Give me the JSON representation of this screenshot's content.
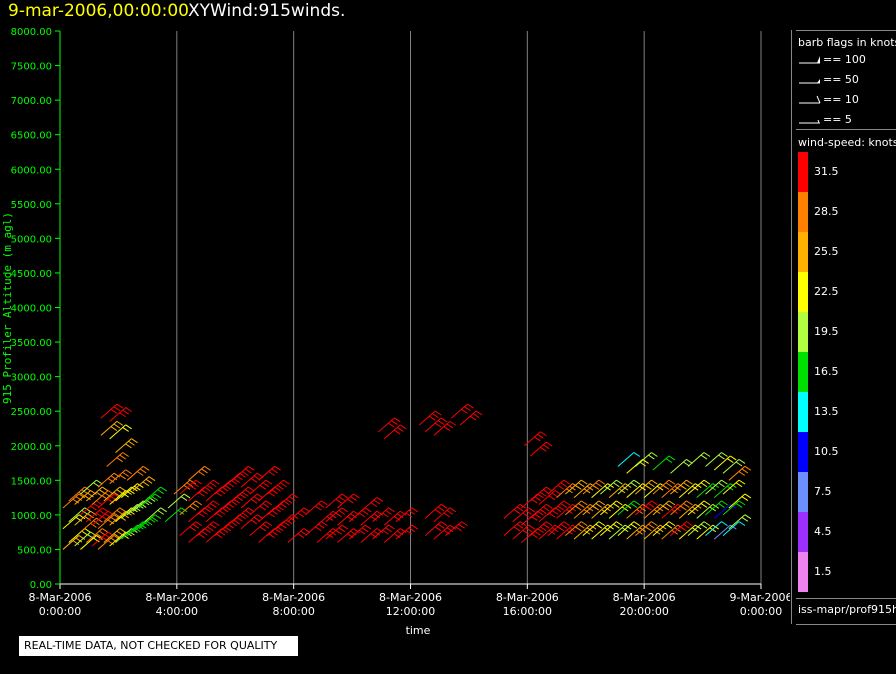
{
  "header": {
    "date_label": "9-mar-2006,00:00:00",
    "product_label": "XYWind:915winds."
  },
  "chart_data": {
    "type": "scatter",
    "title": "9-mar-2006,00:00:00  XYWind:915winds.",
    "xlabel": "time",
    "ylabel": "915 Profiler Altitude (m agl)",
    "x_unit": "hours since 8-Mar-2006 0:00:00",
    "xlim": [
      0,
      24
    ],
    "ylim": [
      0,
      8000
    ],
    "grid": "vertical lines at x ticks",
    "x_ticks": [
      {
        "value": 0,
        "line1": "8-Mar-2006",
        "line2": "0:00:00"
      },
      {
        "value": 4,
        "line1": "8-Mar-2006",
        "line2": "4:00:00"
      },
      {
        "value": 8,
        "line1": "8-Mar-2006",
        "line2": "8:00:00"
      },
      {
        "value": 12,
        "line1": "8-Mar-2006",
        "line2": "12:00:00"
      },
      {
        "value": 16,
        "line1": "8-Mar-2006",
        "line2": "16:00:00"
      },
      {
        "value": 20,
        "line1": "8-Mar-2006",
        "line2": "20:00:00"
      },
      {
        "value": 24,
        "line1": "9-Mar-2006",
        "line2": "0:00:00"
      }
    ],
    "y_ticks": [
      "0.00",
      "500.00",
      "1000.00",
      "1500.00",
      "2000.00",
      "2500.00",
      "3000.00",
      "3500.00",
      "4000.00",
      "4500.00",
      "5000.00",
      "5500.00",
      "6000.00",
      "6500.00",
      "7000.00",
      "7500.00",
      "8000.00"
    ],
    "series": [
      {
        "name": "wind barbs",
        "points": [
          [
            0.1,
            500,
            25.5
          ],
          [
            0.1,
            800,
            22.5
          ],
          [
            0.1,
            1100,
            28.5
          ],
          [
            0.3,
            600,
            22.5
          ],
          [
            0.3,
            900,
            19.5
          ],
          [
            0.3,
            1200,
            28.5
          ],
          [
            0.5,
            550,
            19.5
          ],
          [
            0.5,
            850,
            25.5
          ],
          [
            0.5,
            1150,
            25.5
          ],
          [
            0.7,
            500,
            22.5
          ],
          [
            0.7,
            750,
            28.5
          ],
          [
            0.7,
            1000,
            31.5
          ],
          [
            0.7,
            1300,
            19.5
          ],
          [
            0.9,
            600,
            28.5
          ],
          [
            0.9,
            900,
            31.5
          ],
          [
            0.9,
            1200,
            25.5
          ],
          [
            1.1,
            550,
            31.5
          ],
          [
            1.1,
            850,
            31.5
          ],
          [
            1.1,
            1150,
            28.5
          ],
          [
            1.3,
            500,
            28.5
          ],
          [
            1.3,
            800,
            28.5
          ],
          [
            1.3,
            1100,
            31.5
          ],
          [
            1.3,
            1400,
            28.5
          ],
          [
            1.5,
            600,
            25.5
          ],
          [
            1.5,
            900,
            28.5
          ],
          [
            1.5,
            1200,
            25.5
          ],
          [
            1.7,
            550,
            22.5
          ],
          [
            1.7,
            850,
            25.5
          ],
          [
            1.7,
            1150,
            22.5
          ],
          [
            1.7,
            1450,
            28.5
          ],
          [
            1.9,
            600,
            19.5
          ],
          [
            1.9,
            900,
            22.5
          ],
          [
            1.9,
            1200,
            22.5
          ],
          [
            2.1,
            650,
            16.5
          ],
          [
            2.1,
            950,
            19.5
          ],
          [
            2.1,
            1250,
            22.5
          ],
          [
            2.3,
            700,
            16.5
          ],
          [
            2.3,
            1000,
            19.5
          ],
          [
            2.3,
            1500,
            28.5
          ],
          [
            2.5,
            750,
            16.5
          ],
          [
            2.5,
            1050,
            19.5
          ],
          [
            2.5,
            1350,
            25.5
          ],
          [
            2.7,
            800,
            16.5
          ],
          [
            2.7,
            1100,
            16.5
          ],
          [
            2.9,
            900,
            19.5
          ],
          [
            2.9,
            1200,
            16.5
          ],
          [
            1.4,
            2400,
            31.5
          ],
          [
            1.7,
            2350,
            31.5
          ],
          [
            1.4,
            2150,
            25.5
          ],
          [
            1.7,
            2100,
            22.5
          ],
          [
            1.9,
            1900,
            25.5
          ],
          [
            1.6,
            1700,
            28.5
          ],
          [
            3.6,
            900,
            16.5
          ],
          [
            3.7,
            1100,
            19.5
          ],
          [
            3.9,
            1300,
            28.5
          ],
          [
            4.1,
            700,
            31.5
          ],
          [
            4.1,
            1000,
            28.5
          ],
          [
            4.1,
            1300,
            31.5
          ],
          [
            4.4,
            600,
            31.5
          ],
          [
            4.4,
            900,
            31.5
          ],
          [
            4.4,
            1200,
            31.5
          ],
          [
            4.4,
            1500,
            28.5
          ],
          [
            4.7,
            700,
            31.5
          ],
          [
            4.7,
            1000,
            31.5
          ],
          [
            4.7,
            1300,
            31.5
          ],
          [
            5.0,
            600,
            31.5
          ],
          [
            5.0,
            900,
            31.5
          ],
          [
            5.0,
            1200,
            31.5
          ],
          [
            5.3,
            700,
            31.5
          ],
          [
            5.3,
            1000,
            31.5
          ],
          [
            5.3,
            1300,
            31.5
          ],
          [
            5.6,
            800,
            31.5
          ],
          [
            5.6,
            1100,
            31.5
          ],
          [
            5.6,
            1400,
            31.5
          ],
          [
            5.9,
            900,
            31.5
          ],
          [
            5.9,
            1200,
            31.5
          ],
          [
            5.9,
            1500,
            31.5
          ],
          [
            6.2,
            800,
            31.5
          ],
          [
            6.2,
            1100,
            31.5
          ],
          [
            6.2,
            1400,
            31.5
          ],
          [
            6.5,
            700,
            31.5
          ],
          [
            6.5,
            1000,
            31.5
          ],
          [
            6.5,
            1300,
            31.5
          ],
          [
            6.8,
            600,
            31.5
          ],
          [
            6.8,
            900,
            31.5
          ],
          [
            6.8,
            1200,
            31.5
          ],
          [
            6.8,
            1500,
            31.5
          ],
          [
            7.1,
            700,
            31.5
          ],
          [
            7.1,
            1000,
            31.5
          ],
          [
            7.1,
            1300,
            31.5
          ],
          [
            7.4,
            800,
            31.5
          ],
          [
            7.4,
            1100,
            31.5
          ],
          [
            7.8,
            600,
            31.5
          ],
          [
            7.8,
            900,
            31.5
          ],
          [
            8.4,
            700,
            31.5
          ],
          [
            8.4,
            1000,
            31.5
          ],
          [
            8.8,
            600,
            31.5
          ],
          [
            8.8,
            850,
            31.5
          ],
          [
            9.1,
            650,
            31.5
          ],
          [
            9.1,
            900,
            31.5
          ],
          [
            9.1,
            1100,
            31.5
          ],
          [
            9.5,
            600,
            31.5
          ],
          [
            9.5,
            850,
            31.5
          ],
          [
            9.5,
            1100,
            31.5
          ],
          [
            9.9,
            650,
            31.5
          ],
          [
            9.9,
            900,
            31.5
          ],
          [
            10.3,
            600,
            31.5
          ],
          [
            10.3,
            850,
            31.5
          ],
          [
            10.3,
            1050,
            31.5
          ],
          [
            10.7,
            650,
            31.5
          ],
          [
            10.7,
            900,
            31.5
          ],
          [
            11.1,
            600,
            31.5
          ],
          [
            11.1,
            850,
            31.5
          ],
          [
            11.5,
            650,
            31.5
          ],
          [
            11.5,
            900,
            31.5
          ],
          [
            10.9,
            2200,
            31.5
          ],
          [
            11.1,
            2100,
            31.5
          ],
          [
            12.3,
            2300,
            31.5
          ],
          [
            12.5,
            2200,
            31.5
          ],
          [
            12.8,
            2150,
            31.5
          ],
          [
            13.4,
            2400,
            31.5
          ],
          [
            13.7,
            2300,
            31.5
          ],
          [
            12.5,
            700,
            31.5
          ],
          [
            12.5,
            950,
            31.5
          ],
          [
            12.8,
            650,
            31.5
          ],
          [
            12.8,
            900,
            31.5
          ],
          [
            13.2,
            700,
            31.5
          ],
          [
            15.9,
            2000,
            31.5
          ],
          [
            16.1,
            1850,
            31.5
          ],
          [
            15.2,
            700,
            31.5
          ],
          [
            15.2,
            950,
            31.5
          ],
          [
            15.5,
            650,
            31.5
          ],
          [
            15.5,
            900,
            31.5
          ],
          [
            15.8,
            600,
            31.5
          ],
          [
            15.8,
            850,
            31.5
          ],
          [
            15.8,
            1100,
            31.5
          ],
          [
            16.1,
            700,
            31.5
          ],
          [
            16.1,
            950,
            31.5
          ],
          [
            16.1,
            1200,
            31.5
          ],
          [
            16.4,
            650,
            31.5
          ],
          [
            16.4,
            900,
            31.5
          ],
          [
            16.4,
            1150,
            31.5
          ],
          [
            16.7,
            700,
            31.5
          ],
          [
            16.7,
            1000,
            31.5
          ],
          [
            16.7,
            1300,
            31.5
          ],
          [
            17.0,
            650,
            31.5
          ],
          [
            17.0,
            950,
            31.5
          ],
          [
            17.0,
            1250,
            28.5
          ],
          [
            17.3,
            700,
            28.5
          ],
          [
            17.3,
            1000,
            28.5
          ],
          [
            17.3,
            1300,
            25.5
          ],
          [
            17.6,
            650,
            25.5
          ],
          [
            17.6,
            950,
            28.5
          ],
          [
            17.6,
            1250,
            25.5
          ],
          [
            17.9,
            700,
            22.5
          ],
          [
            17.9,
            1000,
            25.5
          ],
          [
            17.9,
            1300,
            28.5
          ],
          [
            18.2,
            650,
            22.5
          ],
          [
            18.2,
            950,
            25.5
          ],
          [
            18.2,
            1250,
            22.5
          ],
          [
            18.5,
            700,
            22.5
          ],
          [
            18.5,
            1000,
            22.5
          ],
          [
            18.5,
            1300,
            19.5
          ],
          [
            18.8,
            650,
            19.5
          ],
          [
            18.8,
            950,
            22.5
          ],
          [
            18.8,
            1250,
            25.5
          ],
          [
            19.1,
            700,
            22.5
          ],
          [
            19.1,
            1000,
            16.5
          ],
          [
            19.1,
            1300,
            19.5
          ],
          [
            19.1,
            1700,
            13.5
          ],
          [
            19.4,
            650,
            25.5
          ],
          [
            19.4,
            950,
            28.5
          ],
          [
            19.4,
            1250,
            22.5
          ],
          [
            19.4,
            1600,
            22.5
          ],
          [
            19.7,
            700,
            28.5
          ],
          [
            19.7,
            1000,
            31.5
          ],
          [
            19.7,
            1300,
            25.5
          ],
          [
            19.7,
            1700,
            19.5
          ],
          [
            20.0,
            650,
            25.5
          ],
          [
            20.0,
            950,
            28.5
          ],
          [
            20.0,
            1250,
            22.5
          ],
          [
            20.3,
            700,
            22.5
          ],
          [
            20.3,
            1000,
            25.5
          ],
          [
            20.3,
            1300,
            28.5
          ],
          [
            20.3,
            1650,
            16.5
          ],
          [
            20.6,
            650,
            28.5
          ],
          [
            20.6,
            950,
            31.5
          ],
          [
            20.6,
            1250,
            28.5
          ],
          [
            20.9,
            700,
            31.5
          ],
          [
            20.9,
            1000,
            28.5
          ],
          [
            20.9,
            1300,
            25.5
          ],
          [
            20.9,
            1600,
            19.5
          ],
          [
            21.2,
            650,
            22.5
          ],
          [
            21.2,
            950,
            25.5
          ],
          [
            21.2,
            1250,
            22.5
          ],
          [
            21.5,
            700,
            19.5
          ],
          [
            21.5,
            1000,
            22.5
          ],
          [
            21.5,
            1300,
            22.5
          ],
          [
            21.5,
            1700,
            19.5
          ],
          [
            21.8,
            650,
            22.5
          ],
          [
            21.8,
            950,
            19.5
          ],
          [
            21.8,
            1250,
            16.5
          ],
          [
            22.1,
            700,
            13.5
          ],
          [
            22.1,
            1000,
            16.5
          ],
          [
            22.1,
            1300,
            19.5
          ],
          [
            22.1,
            1700,
            19.5
          ],
          [
            22.4,
            650,
            7.5
          ],
          [
            22.4,
            950,
            10.5
          ],
          [
            22.4,
            1250,
            16.5
          ],
          [
            22.4,
            1650,
            22.5
          ],
          [
            22.7,
            700,
            13.5
          ],
          [
            22.7,
            1000,
            16.5
          ],
          [
            22.7,
            1300,
            22.5
          ],
          [
            22.7,
            1600,
            19.5
          ],
          [
            22.9,
            800,
            19.5
          ],
          [
            22.9,
            1100,
            22.5
          ],
          [
            22.9,
            1500,
            28.5
          ]
        ]
      }
    ]
  },
  "legend": {
    "barb_title": "barb flags in knots",
    "barb_entries": [
      {
        "label": "== 100",
        "icon": "pennant-barb"
      },
      {
        "label": "== 50",
        "icon": "half-pennant-barb"
      },
      {
        "label": "== 10",
        "icon": "full-barb"
      },
      {
        "label": "== 5",
        "icon": "half-barb"
      }
    ],
    "speed_title": "wind-speed: knots",
    "speed_entries": [
      {
        "label": "31.5",
        "color": "#ff0000"
      },
      {
        "label": "28.5",
        "color": "#ff8000"
      },
      {
        "label": "25.5",
        "color": "#ffb000"
      },
      {
        "label": "22.5",
        "color": "#ffff00"
      },
      {
        "label": "19.5",
        "color": "#b0ff40"
      },
      {
        "label": "16.5",
        "color": "#00e000"
      },
      {
        "label": "13.5",
        "color": "#00ffff"
      },
      {
        "label": "10.5",
        "color": "#0000ff"
      },
      {
        "label": "7.5",
        "color": "#6b8fff"
      },
      {
        "label": "4.5",
        "color": "#9b30ff"
      },
      {
        "label": "1.5",
        "color": "#ee82ee"
      }
    ]
  },
  "footer": {
    "file_label": "iss-mapr/prof915h",
    "qc_notice": "REAL-TIME DATA, NOT CHECKED FOR QUALITY"
  },
  "colors": {
    "axis": "#00ff00",
    "grid": "#808080",
    "date": "#ffff00"
  }
}
